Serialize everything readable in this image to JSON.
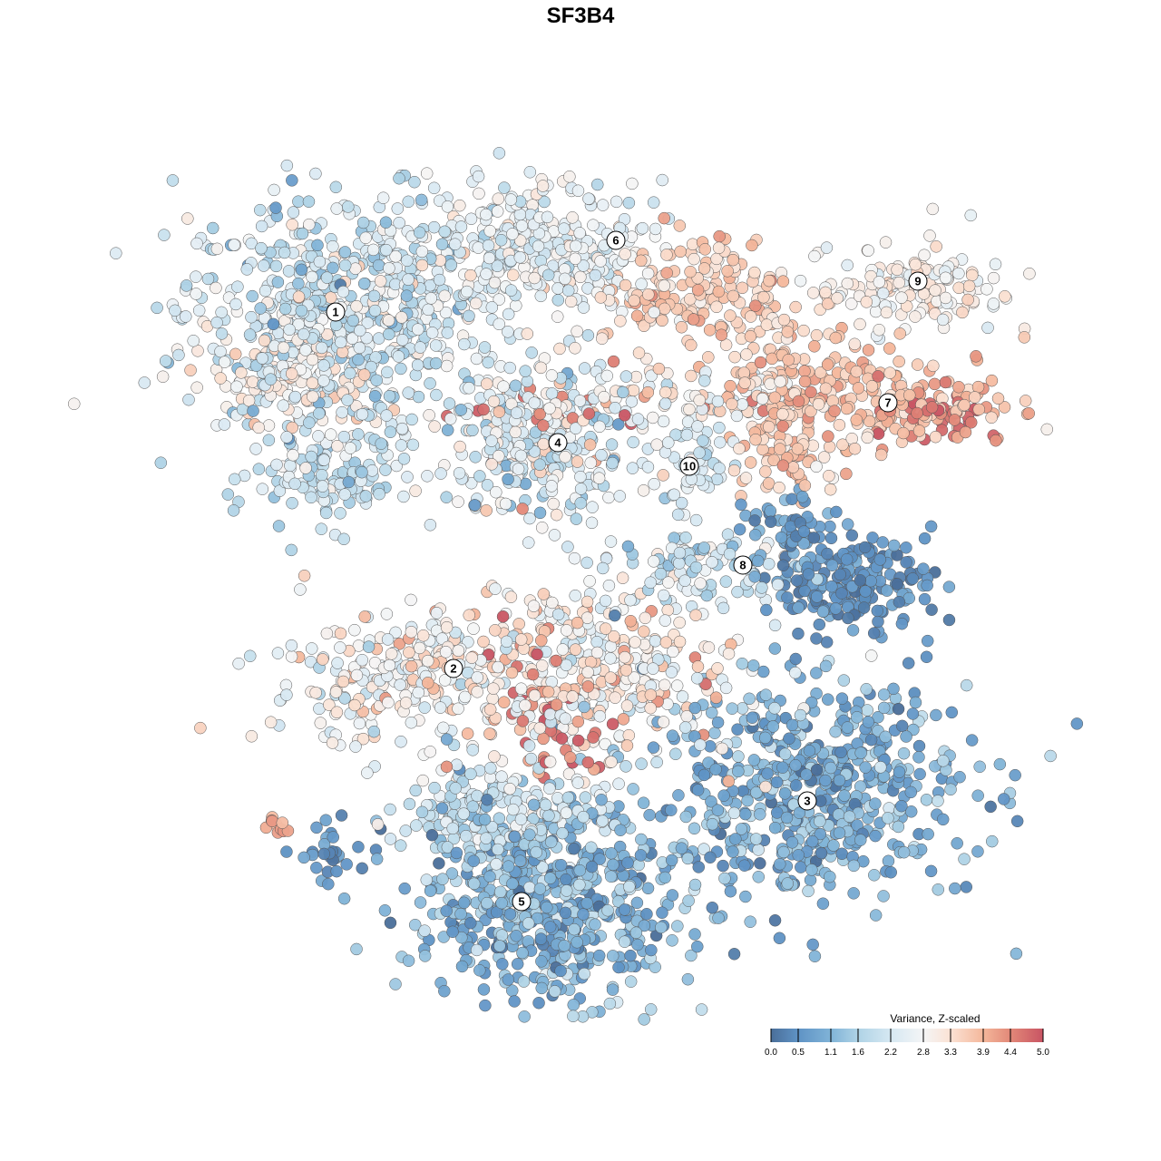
{
  "chart_data": {
    "type": "scatter",
    "title": "SF3B4",
    "xlabel": "",
    "ylabel": "",
    "xlim": [
      -45,
      50
    ],
    "ylim": [
      -46,
      47
    ],
    "grid": false,
    "color_legend": {
      "title": "Variance, Z-scaled",
      "position": "bottom-right",
      "range": [
        0.0,
        5.0
      ],
      "ticks": [
        "0.0",
        "0.5",
        "1.1",
        "1.6",
        "2.2",
        "2.8",
        "3.3",
        "3.9",
        "4.4",
        "5.0"
      ],
      "tick_values": [
        0.0,
        0.5,
        1.1,
        1.6,
        2.2,
        2.8,
        3.3,
        3.9,
        4.4,
        5.0
      ],
      "colors": [
        "#4a6e99",
        "#5f93c5",
        "#80b3d7",
        "#afd3e6",
        "#d6e8f2",
        "#f4f5f6",
        "#fbe2d4",
        "#f4b79b",
        "#e28878",
        "#c85463"
      ]
    },
    "clusters": [
      {
        "label": "1",
        "cx": -27,
        "cy": 29.5,
        "sx": 8.5,
        "sy": 6.5,
        "n": 650,
        "v": 2.1,
        "vsd": 0.55
      },
      {
        "label": "",
        "cx": -31,
        "cy": 22,
        "sx": 4,
        "sy": 3,
        "n": 120,
        "v": 3.1,
        "vsd": 0.3
      },
      {
        "label": "",
        "cx": -27,
        "cy": 11,
        "sx": 4.5,
        "sy": 2.5,
        "n": 120,
        "v": 1.9,
        "vsd": 0.4
      },
      {
        "label": "6",
        "cx": -5,
        "cy": 36.5,
        "sx": 7,
        "sy": 3.8,
        "n": 320,
        "v": 2.5,
        "vsd": 0.4
      },
      {
        "label": "",
        "cx": 12,
        "cy": 32,
        "sx": 5.5,
        "sy": 3.2,
        "n": 150,
        "v": 3.6,
        "vsd": 0.3
      },
      {
        "label": "",
        "cx": 22,
        "cy": 25,
        "sx": 4,
        "sy": 3,
        "n": 80,
        "v": 3.5,
        "vsd": 0.3
      },
      {
        "label": "9",
        "cx": 37,
        "cy": 32,
        "sx": 5,
        "sy": 2.5,
        "n": 140,
        "v": 2.9,
        "vsd": 0.35
      },
      {
        "label": "7",
        "cx": 32,
        "cy": 20,
        "sx": 8,
        "sy": 2.8,
        "n": 220,
        "v": 3.8,
        "vsd": 0.35
      },
      {
        "label": "",
        "cx": 40,
        "cy": 17.5,
        "sx": 2.5,
        "sy": 1.5,
        "n": 30,
        "v": 4.7,
        "vsd": 0.2
      },
      {
        "label": "",
        "cx": 23,
        "cy": 14,
        "sx": 4,
        "sy": 2,
        "n": 60,
        "v": 3.6,
        "vsd": 0.3
      },
      {
        "label": "4",
        "cx": -4.5,
        "cy": 15,
        "sx": 5,
        "sy": 4.5,
        "n": 300,
        "v": 2.3,
        "vsd": 0.7
      },
      {
        "label": "",
        "cx": -4,
        "cy": 19,
        "sx": 4,
        "sy": 1.2,
        "n": 25,
        "v": 4.7,
        "vsd": 0.2
      },
      {
        "label": "10",
        "cx": 12,
        "cy": 13,
        "sx": 2.5,
        "sy": 3,
        "n": 60,
        "v": 2.2,
        "vsd": 0.3
      },
      {
        "label": "",
        "cx": 9,
        "cy": 20,
        "sx": 8,
        "sy": 1.5,
        "n": 80,
        "v": 2.8,
        "vsd": 0.5
      },
      {
        "label": "8",
        "cx": 14,
        "cy": 1.5,
        "sx": 5,
        "sy": 2,
        "n": 90,
        "v": 2.0,
        "vsd": 0.5
      },
      {
        "label": "",
        "cx": 30,
        "cy": 0,
        "sx": 4.5,
        "sy": 2.5,
        "n": 200,
        "v": 0.5,
        "vsd": 0.3
      },
      {
        "label": "",
        "cx": 23,
        "cy": 6,
        "sx": 3,
        "sy": 2,
        "n": 50,
        "v": 0.6,
        "vsd": 0.3
      },
      {
        "label": "2",
        "cx": -22,
        "cy": -11,
        "sx": 6,
        "sy": 3.5,
        "n": 200,
        "v": 2.8,
        "vsd": 0.5
      },
      {
        "label": "",
        "cx": 0,
        "cy": -10,
        "sx": 9,
        "sy": 5,
        "n": 420,
        "v": 3.0,
        "vsd": 0.6
      },
      {
        "label": "",
        "cx": -3,
        "cy": -14,
        "sx": 3,
        "sy": 4,
        "n": 40,
        "v": 4.6,
        "vsd": 0.3
      },
      {
        "label": "3",
        "cx": 25,
        "cy": -23,
        "sx": 9,
        "sy": 6,
        "n": 600,
        "v": 1.0,
        "vsd": 0.45
      },
      {
        "label": "5",
        "cx": -4,
        "cy": -36,
        "sx": 7.5,
        "sy": 5,
        "n": 550,
        "v": 1.1,
        "vsd": 0.5
      },
      {
        "label": "",
        "cx": -8,
        "cy": -26,
        "sx": 6,
        "sy": 3,
        "n": 220,
        "v": 2.0,
        "vsd": 0.5
      },
      {
        "label": "",
        "cx": -27,
        "cy": -30,
        "sx": 2,
        "sy": 1.5,
        "n": 30,
        "v": 0.5,
        "vsd": 0.3
      },
      {
        "label": "",
        "cx": -34,
        "cy": -27,
        "sx": 0.8,
        "sy": 0.6,
        "n": 10,
        "v": 4.1,
        "vsd": 0.2
      }
    ],
    "label_positions": [
      {
        "label": "1",
        "x": -27,
        "y": 29.6
      },
      {
        "label": "2",
        "x": -14,
        "y": -9.7
      },
      {
        "label": "3",
        "x": 25,
        "y": -24.3
      },
      {
        "label": "4",
        "x": -2.5,
        "y": 15.2
      },
      {
        "label": "5",
        "x": -6.5,
        "y": -35.4
      },
      {
        "label": "6",
        "x": 3.9,
        "y": 37.5
      },
      {
        "label": "7",
        "x": 33.9,
        "y": 19.6
      },
      {
        "label": "8",
        "x": 17.9,
        "y": 1.7
      },
      {
        "label": "9",
        "x": 37.2,
        "y": 33
      },
      {
        "label": "10",
        "x": 12,
        "y": 12.6
      }
    ]
  }
}
